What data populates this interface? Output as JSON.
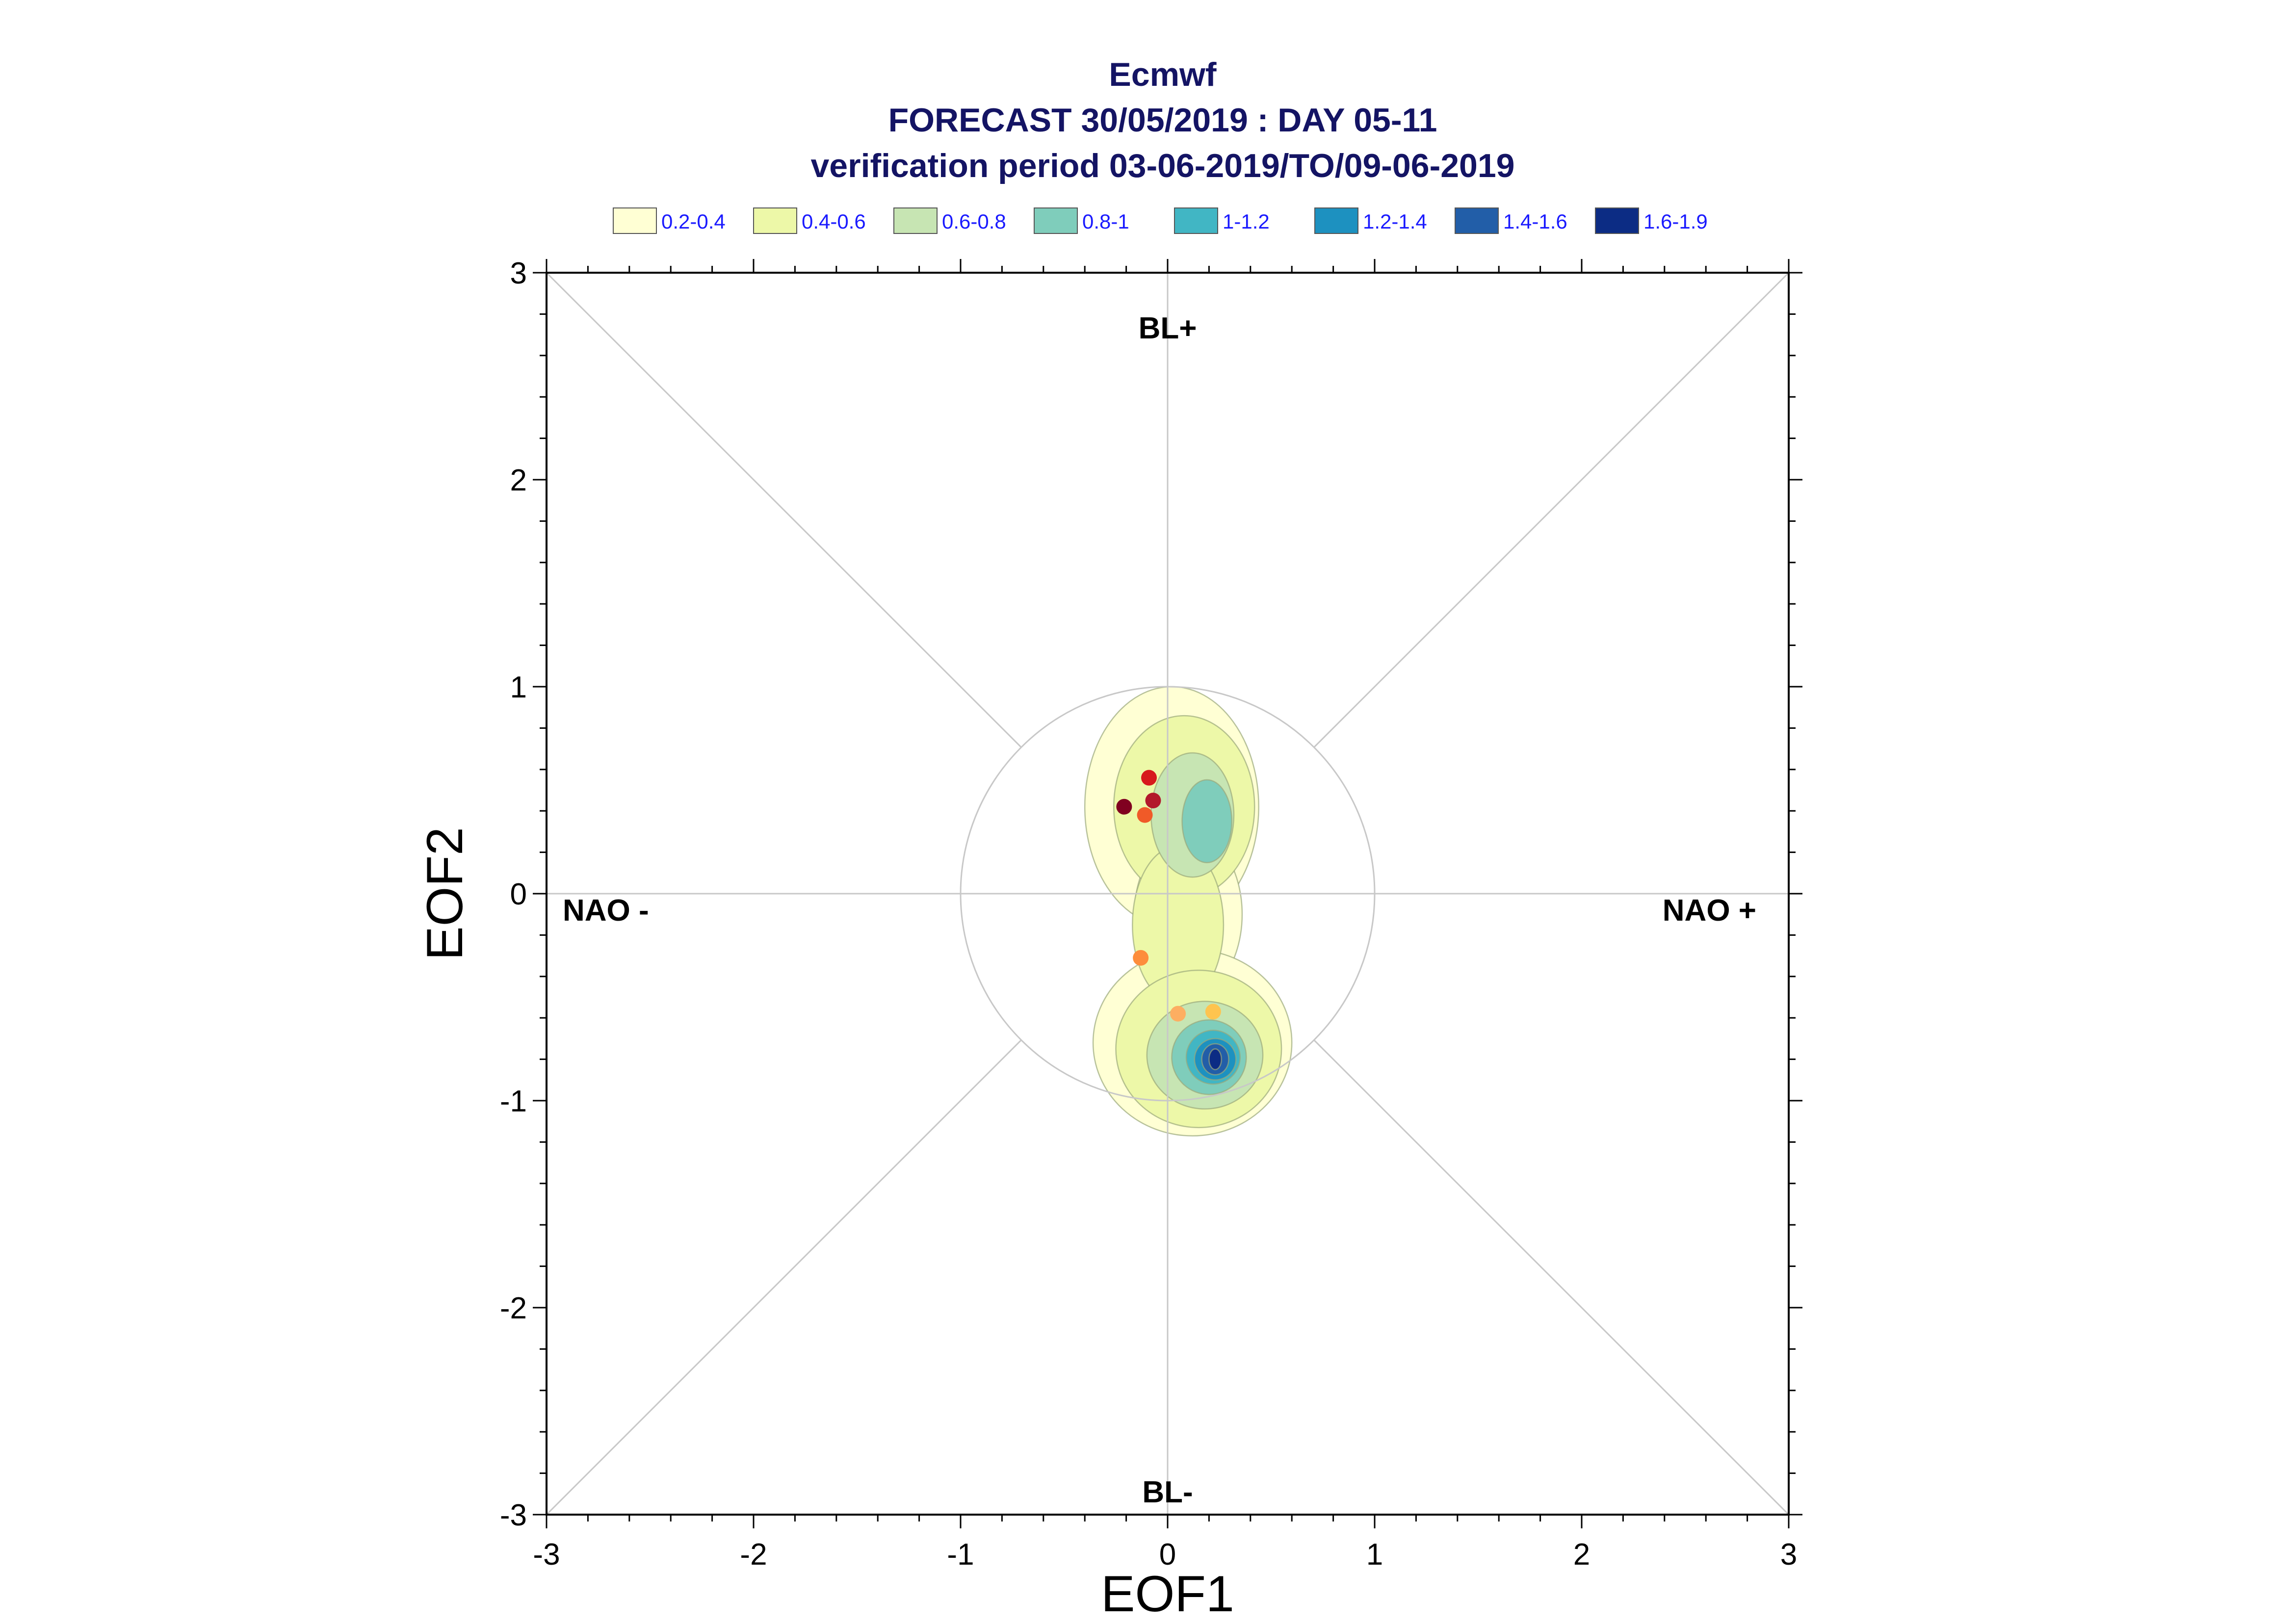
{
  "chart_data": {
    "type": "scatter",
    "title": "Ecmwf",
    "subtitle_1": "FORECAST 30/05/2019 : DAY 05-11",
    "subtitle_2": "verification period 03-06-2019/TO/09-06-2019",
    "xlabel": "EOF1",
    "ylabel": "EOF2",
    "xlim": [
      -3,
      3
    ],
    "ylim": [
      -3,
      3
    ],
    "x_ticks": [
      "-3",
      "-2",
      "-1",
      "0",
      "1",
      "2",
      "3"
    ],
    "y_ticks": [
      "-3",
      "-2",
      "-1",
      "0",
      "1",
      "2",
      "3"
    ],
    "grid": false,
    "legend_placement": "top",
    "regime_labels": {
      "top": "BL+",
      "bottom": "BL-",
      "left": "NAO -",
      "right": "NAO +"
    },
    "reference_circle_radius": 1,
    "density_legend": [
      {
        "label": "0.2-0.4",
        "color": "#ffffd4"
      },
      {
        "label": "0.4-0.6",
        "color": "#edf8a8"
      },
      {
        "label": "0.6-0.8",
        "color": "#c7e5b3"
      },
      {
        "label": "0.8-1",
        "color": "#7fcdbb"
      },
      {
        "label": "1-1.2",
        "color": "#41b6c4"
      },
      {
        "label": "1.2-1.4",
        "color": "#1d91c0"
      },
      {
        "label": "1.4-1.6",
        "color": "#225ea8"
      },
      {
        "label": "1.6-1.9",
        "color": "#0c2c84"
      }
    ],
    "density_regions": [
      {
        "level": 0,
        "center": [
          0.02,
          0.42
        ],
        "radius": [
          0.42,
          0.58
        ]
      },
      {
        "level": 0,
        "center": [
          0.1,
          -0.1
        ],
        "radius": [
          0.26,
          0.4
        ]
      },
      {
        "level": 0,
        "center": [
          0.12,
          -0.72
        ],
        "radius": [
          0.48,
          0.45
        ]
      },
      {
        "level": 1,
        "center": [
          0.08,
          0.42
        ],
        "radius": [
          0.34,
          0.44
        ]
      },
      {
        "level": 1,
        "center": [
          0.05,
          -0.15
        ],
        "radius": [
          0.22,
          0.38
        ]
      },
      {
        "level": 1,
        "center": [
          0.15,
          -0.75
        ],
        "radius": [
          0.4,
          0.38
        ]
      },
      {
        "level": 2,
        "center": [
          0.12,
          0.38
        ],
        "radius": [
          0.2,
          0.3
        ]
      },
      {
        "level": 2,
        "center": [
          0.18,
          -0.78
        ],
        "radius": [
          0.28,
          0.26
        ]
      },
      {
        "level": 3,
        "center": [
          0.19,
          0.35
        ],
        "radius": [
          0.12,
          0.2
        ]
      },
      {
        "level": 3,
        "center": [
          0.2,
          -0.79
        ],
        "radius": [
          0.18,
          0.18
        ]
      },
      {
        "level": 4,
        "center": [
          0.22,
          -0.79
        ],
        "radius": [
          0.13,
          0.13
        ]
      },
      {
        "level": 5,
        "center": [
          0.23,
          -0.8
        ],
        "radius": [
          0.1,
          0.1
        ]
      },
      {
        "level": 6,
        "center": [
          0.23,
          -0.8
        ],
        "radius": [
          0.065,
          0.075
        ]
      },
      {
        "level": 7,
        "center": [
          0.23,
          -0.8
        ],
        "radius": [
          0.03,
          0.05
        ]
      }
    ],
    "points": [
      {
        "x": -0.09,
        "y": 0.56,
        "color": "#d7191c"
      },
      {
        "x": -0.07,
        "y": 0.45,
        "color": "#b2182b"
      },
      {
        "x": -0.21,
        "y": 0.42,
        "color": "#800020"
      },
      {
        "x": -0.11,
        "y": 0.38,
        "color": "#f05a28"
      },
      {
        "x": -0.13,
        "y": -0.31,
        "color": "#fd8d3c"
      },
      {
        "x": 0.05,
        "y": -0.58,
        "color": "#fdae61"
      },
      {
        "x": 0.22,
        "y": -0.57,
        "color": "#fec44f"
      }
    ]
  }
}
